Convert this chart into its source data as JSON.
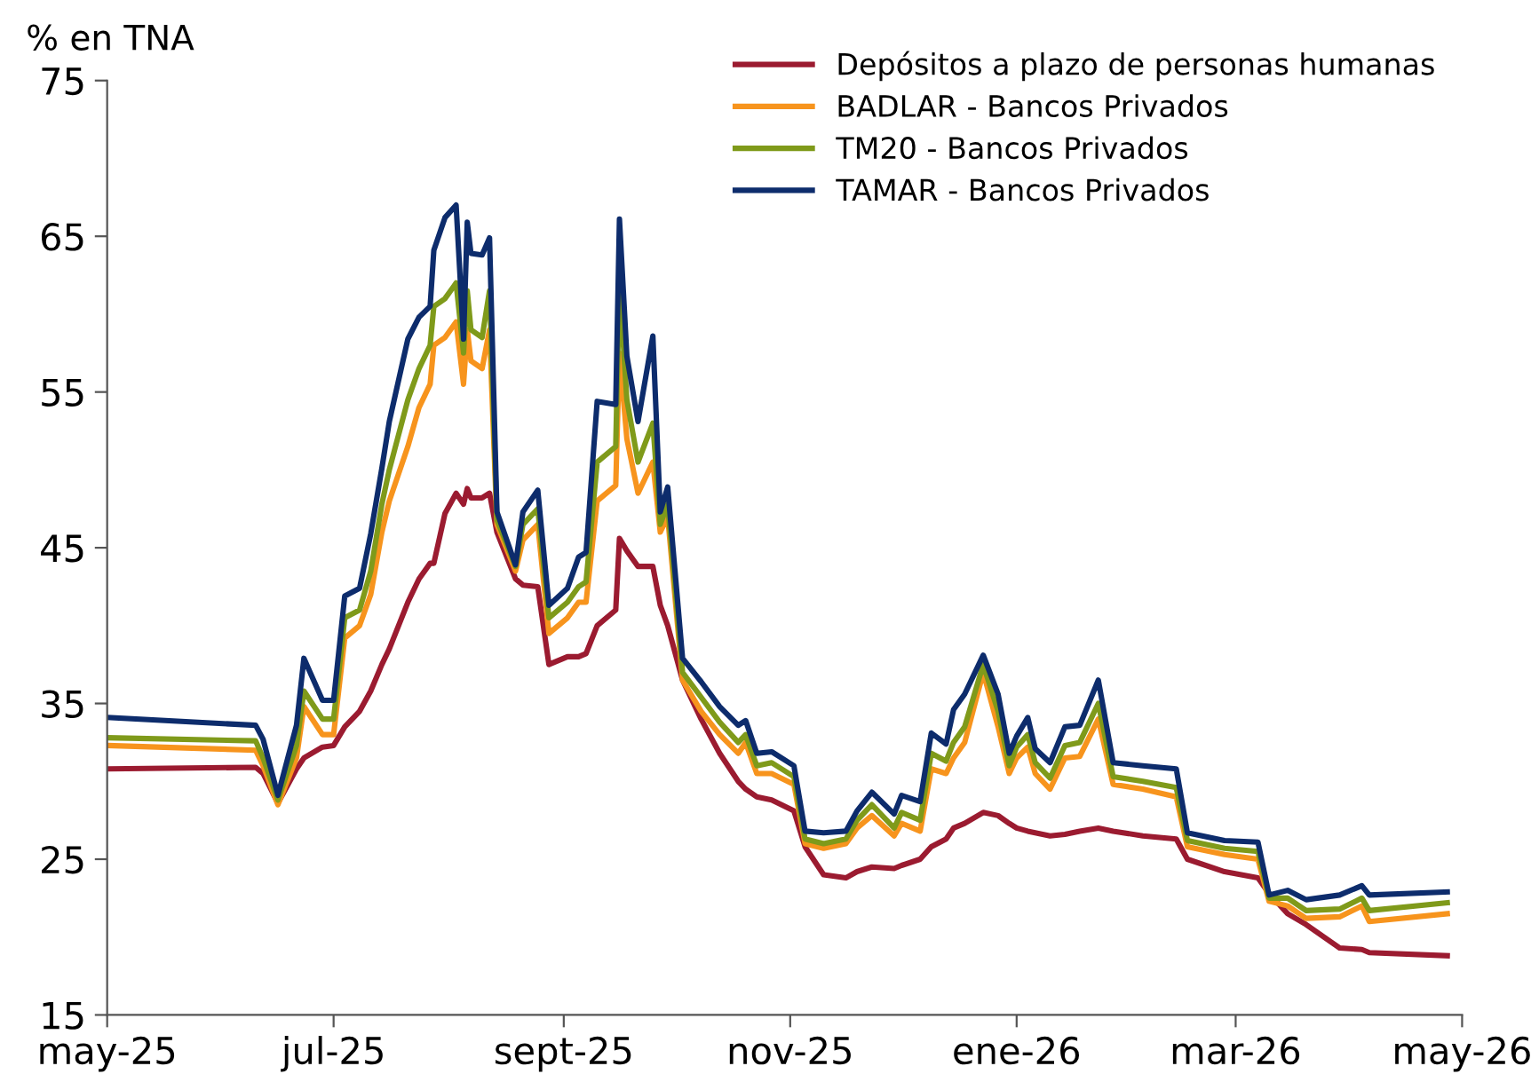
{
  "chart_data": {
    "type": "line",
    "ylabel": "% en TNA",
    "x": [
      "2025-05-01",
      "2025-06-10",
      "2025-06-12",
      "2025-06-16",
      "2025-06-21",
      "2025-06-23",
      "2025-06-28",
      "2025-07-01",
      "2025-07-04",
      "2025-07-08",
      "2025-07-11",
      "2025-07-14",
      "2025-07-16",
      "2025-07-21",
      "2025-07-24",
      "2025-07-27",
      "2025-07-28",
      "2025-07-31",
      "2025-08-03",
      "2025-08-05",
      "2025-08-06",
      "2025-08-07",
      "2025-08-10",
      "2025-08-12",
      "2025-08-14",
      "2025-08-19",
      "2025-08-21",
      "2025-08-25",
      "2025-08-28",
      "2025-09-02",
      "2025-09-05",
      "2025-09-07",
      "2025-09-10",
      "2025-09-15",
      "2025-09-16",
      "2025-09-18",
      "2025-09-21",
      "2025-09-25",
      "2025-09-27",
      "2025-09-29",
      "2025-10-03",
      "2025-10-08",
      "2025-10-13",
      "2025-10-18",
      "2025-10-20",
      "2025-10-23",
      "2025-10-27",
      "2025-11-02",
      "2025-11-05",
      "2025-11-10",
      "2025-11-16",
      "2025-11-19",
      "2025-11-23",
      "2025-11-29",
      "2025-12-01",
      "2025-12-06",
      "2025-12-09",
      "2025-12-13",
      "2025-12-15",
      "2025-12-18",
      "2025-12-23",
      "2025-12-27",
      "2025-12-30",
      "2026-01-01",
      "2026-01-04",
      "2026-01-06",
      "2026-01-10",
      "2026-01-14",
      "2026-01-18",
      "2026-01-23",
      "2026-01-27",
      "2026-02-04",
      "2026-02-13",
      "2026-02-16",
      "2026-02-26",
      "2026-03-07",
      "2026-03-10",
      "2026-03-15",
      "2026-03-20",
      "2026-03-29",
      "2026-04-04",
      "2026-04-06",
      "2026-04-27"
    ],
    "series": [
      {
        "name": "Depósitos a plazo de personas humanas",
        "color": "#9b1b30",
        "values": [
          30.8,
          30.9,
          30.5,
          28.6,
          30.8,
          31.5,
          32.2,
          32.3,
          33.5,
          34.5,
          35.8,
          37.5,
          38.5,
          41.5,
          43.0,
          44.0,
          44.0,
          47.2,
          48.5,
          47.8,
          48.8,
          48.2,
          48.2,
          48.5,
          46.0,
          43.0,
          42.6,
          42.5,
          37.5,
          38.0,
          38.0,
          38.2,
          40.0,
          41.0,
          45.6,
          44.8,
          43.8,
          43.8,
          41.3,
          40.0,
          36.5,
          34.0,
          31.8,
          30.0,
          29.5,
          29.0,
          28.8,
          28.1,
          25.8,
          24.0,
          23.8,
          24.2,
          24.5,
          24.4,
          24.6,
          25.0,
          25.8,
          26.3,
          27.0,
          27.3,
          28.0,
          27.8,
          27.3,
          27.0,
          26.8,
          26.7,
          26.5,
          26.6,
          26.8,
          27.0,
          26.8,
          26.5,
          26.3,
          25.0,
          24.2,
          23.8,
          22.8,
          21.5,
          20.8,
          19.3,
          19.2,
          19.0,
          18.8
        ]
      },
      {
        "name": "BADLAR - Bancos Privados",
        "color": "#f7941d",
        "values": [
          32.3,
          32.0,
          31.0,
          28.5,
          31.5,
          34.8,
          33.0,
          33.0,
          39.2,
          40.0,
          42.0,
          46.0,
          48.0,
          51.5,
          54.0,
          55.5,
          58.0,
          58.5,
          59.5,
          55.5,
          59.0,
          57.0,
          56.5,
          59.0,
          46.5,
          43.5,
          45.5,
          46.5,
          39.5,
          40.5,
          41.5,
          41.5,
          48.0,
          49.0,
          57.5,
          52.0,
          48.5,
          50.5,
          46.0,
          47.0,
          36.5,
          34.5,
          33.0,
          31.8,
          32.5,
          30.5,
          30.5,
          29.8,
          26.0,
          25.7,
          26.0,
          27.0,
          27.8,
          26.5,
          27.3,
          26.8,
          30.8,
          30.5,
          31.5,
          32.5,
          37.0,
          33.5,
          30.5,
          31.5,
          32.2,
          30.5,
          29.5,
          31.5,
          31.6,
          34.0,
          29.8,
          29.5,
          29.0,
          25.8,
          25.3,
          25.0,
          22.3,
          22.0,
          21.2,
          21.3,
          22.0,
          21.0,
          21.5
        ]
      },
      {
        "name": "TM20 - Bancos Privados",
        "color": "#7f9a1a",
        "values": [
          32.8,
          32.6,
          31.5,
          28.8,
          32.3,
          35.8,
          34.0,
          34.0,
          40.5,
          41.0,
          43.5,
          47.8,
          50.0,
          54.5,
          56.5,
          58.0,
          60.5,
          61.0,
          62.0,
          57.5,
          61.5,
          59.0,
          58.5,
          61.5,
          46.8,
          43.8,
          46.5,
          47.5,
          40.5,
          41.5,
          42.5,
          42.8,
          50.5,
          51.5,
          62.0,
          54.5,
          50.5,
          53.0,
          46.5,
          47.8,
          37.0,
          35.4,
          33.8,
          32.5,
          33.0,
          31.0,
          31.2,
          30.3,
          26.3,
          26.0,
          26.3,
          27.5,
          28.5,
          27.0,
          28.0,
          27.5,
          31.8,
          31.3,
          32.5,
          33.5,
          37.5,
          34.5,
          31.0,
          32.2,
          33.0,
          31.2,
          30.2,
          32.3,
          32.5,
          35.0,
          30.3,
          30.0,
          29.6,
          26.2,
          25.7,
          25.5,
          22.5,
          22.5,
          21.7,
          21.8,
          22.5,
          21.7,
          22.2
        ]
      },
      {
        "name": "TAMAR - Bancos Privados",
        "color": "#0d2c6c",
        "values": [
          34.1,
          33.6,
          32.7,
          29.1,
          33.6,
          37.9,
          35.2,
          35.2,
          41.9,
          42.4,
          45.9,
          50.1,
          53.1,
          58.4,
          59.8,
          60.5,
          64.1,
          66.2,
          67.0,
          58.4,
          65.9,
          63.9,
          63.8,
          64.9,
          47.3,
          43.9,
          47.3,
          48.7,
          41.3,
          42.4,
          44.4,
          44.7,
          54.4,
          54.2,
          66.1,
          57.3,
          53.1,
          58.6,
          47.3,
          48.9,
          37.9,
          36.4,
          34.8,
          33.6,
          33.9,
          31.8,
          31.9,
          31.0,
          26.8,
          26.7,
          26.8,
          28.1,
          29.3,
          27.9,
          29.1,
          28.7,
          33.1,
          32.4,
          34.6,
          35.6,
          38.1,
          35.6,
          31.8,
          32.9,
          34.1,
          32.1,
          31.2,
          33.5,
          33.6,
          36.5,
          31.2,
          31.0,
          30.8,
          26.7,
          26.2,
          26.1,
          22.7,
          23.0,
          22.4,
          22.7,
          23.3,
          22.7,
          22.9
        ]
      }
    ],
    "xlim": [
      "2025-05-01",
      "2026-05-01"
    ],
    "xticks": [
      {
        "value": "2025-05-01",
        "label": "may-25"
      },
      {
        "value": "2025-07-01",
        "label": "jul-25"
      },
      {
        "value": "2025-09-01",
        "label": "sept-25"
      },
      {
        "value": "2025-11-01",
        "label": "nov-25"
      },
      {
        "value": "2026-01-01",
        "label": "ene-26"
      },
      {
        "value": "2026-03-01",
        "label": "mar-26"
      },
      {
        "value": "2026-05-01",
        "label": "may-26"
      }
    ],
    "ylim": [
      15,
      75
    ],
    "yticks": [
      15,
      25,
      35,
      45,
      55,
      65,
      75
    ],
    "grid": false,
    "legend": "top right",
    "marker": "none",
    "line_style": "solid"
  }
}
